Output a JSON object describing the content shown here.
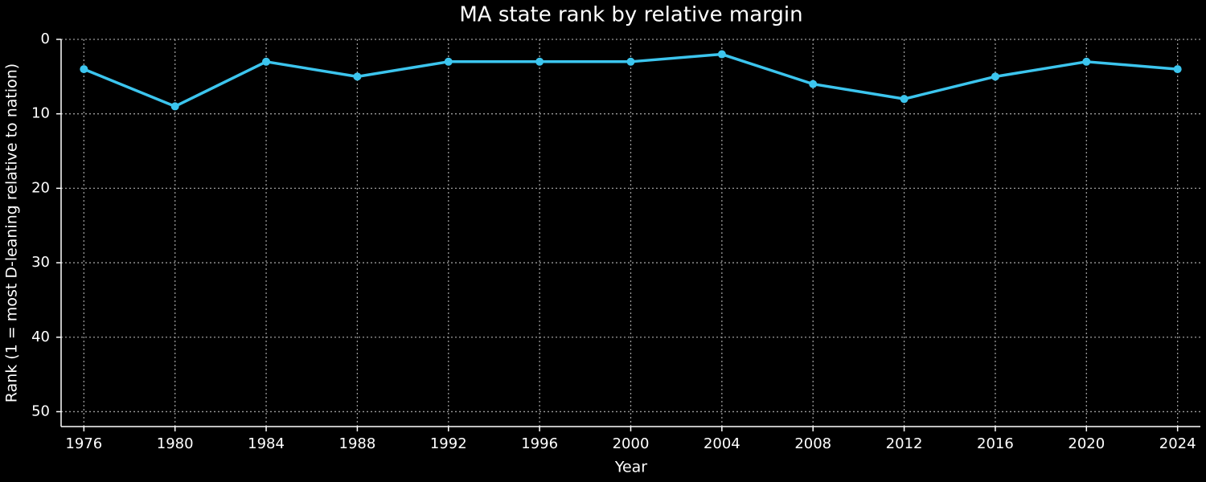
{
  "chart_data": {
    "type": "line",
    "title": "MA state rank by relative margin",
    "x_label": "Year",
    "y_label": "Rank (1 = most D-leaning relative to nation)",
    "x": [
      1976,
      1980,
      1984,
      1988,
      1992,
      1996,
      2000,
      2004,
      2008,
      2012,
      2016,
      2020,
      2024
    ],
    "series": [
      {
        "name": "MA",
        "color": "#3cc5ee",
        "values": [
          4,
          9,
          3,
          5,
          3,
          3,
          3,
          2,
          6,
          8,
          5,
          3,
          4
        ]
      }
    ],
    "xlim": [
      1975,
      2025
    ],
    "xticks": [
      1976,
      1980,
      1984,
      1988,
      1992,
      1996,
      2000,
      2004,
      2008,
      2012,
      2016,
      2020,
      2024
    ],
    "ylim": [
      52,
      0
    ],
    "yticks": [
      0,
      10,
      20,
      30,
      40,
      50
    ],
    "grid": true
  }
}
